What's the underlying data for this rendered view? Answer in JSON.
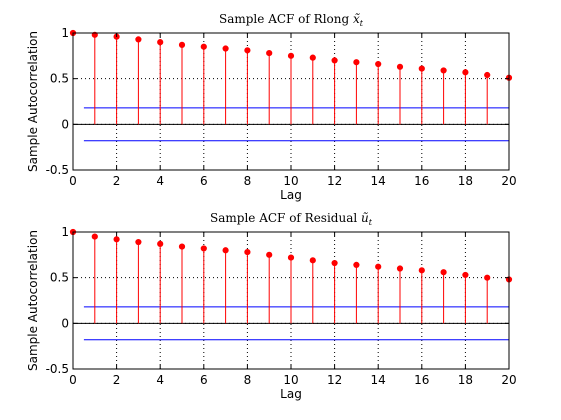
{
  "chart_data": [
    {
      "type": "stem",
      "title": "Sample ACF of Rlong",
      "title_symbol": "x̃",
      "title_subscript": "t",
      "xlabel": "Lag",
      "ylabel": "Sample Autocorrelation",
      "xlim": [
        0,
        20
      ],
      "ylim": [
        -0.5,
        1
      ],
      "xticks": [
        0,
        2,
        4,
        6,
        8,
        10,
        12,
        14,
        16,
        18,
        20
      ],
      "yticks": [
        -0.5,
        0,
        0.5,
        1
      ],
      "ytick_labels": [
        "-0.5",
        "0",
        "0.5",
        "1"
      ],
      "grid": "dotted",
      "x": [
        0,
        1,
        2,
        3,
        4,
        5,
        6,
        7,
        8,
        9,
        10,
        11,
        12,
        13,
        14,
        15,
        16,
        17,
        18,
        19,
        20
      ],
      "values": [
        1.0,
        0.98,
        0.96,
        0.93,
        0.9,
        0.87,
        0.85,
        0.83,
        0.81,
        0.78,
        0.75,
        0.73,
        0.7,
        0.68,
        0.66,
        0.63,
        0.61,
        0.59,
        0.57,
        0.54,
        0.51
      ],
      "confidence_bounds": [
        0.18,
        -0.18
      ],
      "colors": {
        "stem": "#ff0000",
        "marker": "#ff0000",
        "bound": "#0000ff",
        "zero": "#000000"
      }
    },
    {
      "type": "stem",
      "title": "Sample ACF of Residual",
      "title_symbol": "ũ",
      "title_subscript": "t",
      "xlabel": "Lag",
      "ylabel": "Sample Autocorrelation",
      "xlim": [
        0,
        20
      ],
      "ylim": [
        -0.5,
        1
      ],
      "xticks": [
        0,
        2,
        4,
        6,
        8,
        10,
        12,
        14,
        16,
        18,
        20
      ],
      "yticks": [
        -0.5,
        0,
        0.5,
        1
      ],
      "ytick_labels": [
        "-0.5",
        "0",
        "0.5",
        "1"
      ],
      "grid": "dotted",
      "x": [
        0,
        1,
        2,
        3,
        4,
        5,
        6,
        7,
        8,
        9,
        10,
        11,
        12,
        13,
        14,
        15,
        16,
        17,
        18,
        19,
        20
      ],
      "values": [
        1.0,
        0.95,
        0.92,
        0.89,
        0.87,
        0.84,
        0.82,
        0.8,
        0.78,
        0.75,
        0.72,
        0.69,
        0.66,
        0.64,
        0.62,
        0.6,
        0.58,
        0.56,
        0.53,
        0.5,
        0.48
      ],
      "confidence_bounds": [
        0.18,
        -0.18
      ],
      "colors": {
        "stem": "#ff0000",
        "marker": "#ff0000",
        "bound": "#0000ff",
        "zero": "#000000"
      }
    }
  ]
}
